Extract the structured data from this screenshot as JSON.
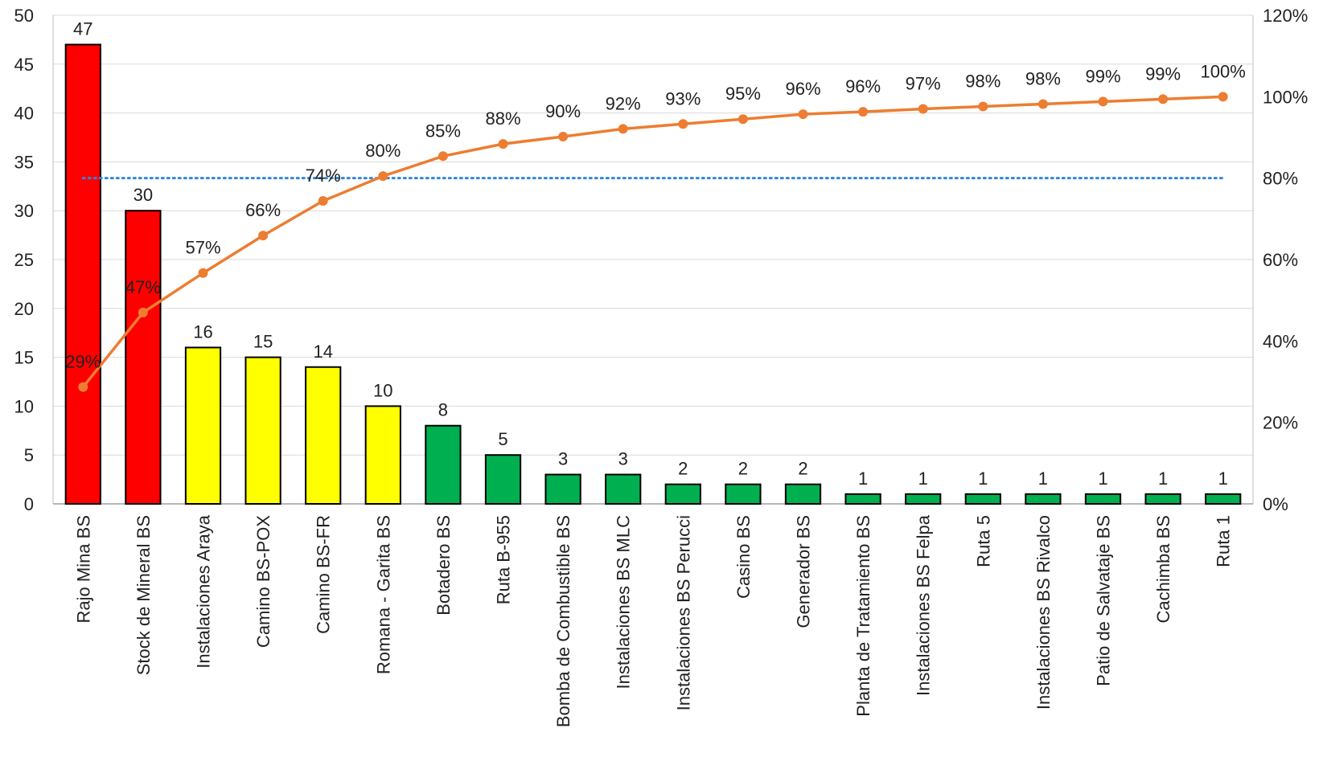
{
  "chart_data": {
    "type": "bar",
    "title": "",
    "xlabel": "",
    "ylabel": "",
    "ylim": [
      0,
      50
    ],
    "y_ticks": [
      "0",
      "5",
      "10",
      "15",
      "20",
      "25",
      "30",
      "35",
      "40",
      "45",
      "50"
    ],
    "y2lim": [
      0,
      120
    ],
    "y2_ticks": [
      "0%",
      "20%",
      "40%",
      "60%",
      "80%",
      "100%",
      "120%"
    ],
    "grid": true,
    "legend": "none",
    "categories": [
      "Rajo Mina BS",
      "Stock de Mineral BS",
      "Instalaciones Araya",
      "Camino BS-POX",
      "Camino BS-FR",
      "Romana - Garita BS",
      "Botadero BS",
      "Ruta B-955",
      "Bomba de Combustible BS",
      "Instalaciones BS MLC",
      "Instalaciones BS Perucci",
      "Casino BS",
      "Generador BS",
      "Planta de Tratamiento BS",
      "Instalaciones BS Felpa",
      "Ruta 5",
      "Instalaciones BS Rivalco",
      "Patio de Salvataje BS",
      "Cachimba BS",
      "Ruta 1"
    ],
    "series": [
      {
        "kind": "bar",
        "axis": "left",
        "values": [
          47,
          30,
          16,
          15,
          14,
          10,
          8,
          5,
          3,
          3,
          2,
          2,
          2,
          1,
          1,
          1,
          1,
          1,
          1,
          1
        ],
        "labels": [
          "47",
          "30",
          "16",
          "15",
          "14",
          "10",
          "8",
          "5",
          "3",
          "3",
          "2",
          "2",
          "2",
          "1",
          "1",
          "1",
          "1",
          "1",
          "1",
          "1"
        ],
        "colors": [
          "#ff0000",
          "#ff0000",
          "#ffff00",
          "#ffff00",
          "#ffff00",
          "#ffff00",
          "#00b050",
          "#00b050",
          "#00b050",
          "#00b050",
          "#00b050",
          "#00b050",
          "#00b050",
          "#00b050",
          "#00b050",
          "#00b050",
          "#00b050",
          "#00b050",
          "#00b050",
          "#00b050"
        ]
      },
      {
        "kind": "line",
        "axis": "right",
        "color": "#ed7d31",
        "values": [
          28.7,
          47.0,
          56.7,
          65.9,
          74.4,
          80.5,
          85.4,
          88.4,
          90.2,
          92.1,
          93.3,
          94.5,
          95.7,
          96.3,
          97.0,
          97.6,
          98.2,
          98.8,
          99.4,
          100.0
        ],
        "labels": [
          "29%",
          "47%",
          "57%",
          "66%",
          "74%",
          "80%",
          "85%",
          "88%",
          "90%",
          "92%",
          "93%",
          "95%",
          "96%",
          "96%",
          "97%",
          "98%",
          "98%",
          "99%",
          "99%",
          "100%"
        ]
      }
    ],
    "reference_line": {
      "axis": "right",
      "value": 80,
      "color": "#2e86de",
      "style": "dotted"
    }
  }
}
